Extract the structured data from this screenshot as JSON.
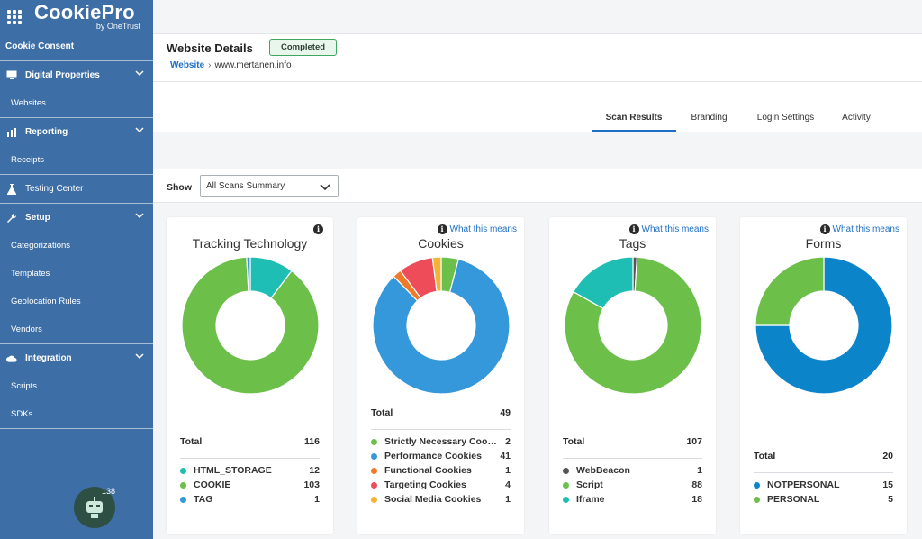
{
  "app": {
    "logo": "CookiePro",
    "logo_sub": "by OneTrust"
  },
  "sidebar": {
    "section_title": "Cookie Consent",
    "groups": [
      {
        "label": "Digital Properties",
        "icon": "monitor-icon",
        "items": [
          "Websites"
        ]
      },
      {
        "label": "Reporting",
        "icon": "bar-chart-icon",
        "items": [
          "Receipts"
        ]
      },
      {
        "label": "Testing Center",
        "icon": "flask-icon",
        "items": []
      },
      {
        "label": "Setup",
        "icon": "wrench-icon",
        "items": [
          "Categorizations",
          "Templates",
          "Geolocation Rules",
          "Vendors"
        ]
      },
      {
        "label": "Integration",
        "icon": "cloud-icon",
        "items": [
          "Scripts",
          "SDKs"
        ]
      }
    ],
    "bot_badge": "138"
  },
  "header": {
    "title": "Website Details",
    "status": "Completed",
    "breadcrumb_link": "Website",
    "breadcrumb_current": "www.mertanen.info"
  },
  "tabs": [
    "Scan Results",
    "Branding",
    "Login Settings",
    "Activity"
  ],
  "active_tab": "Scan Results",
  "filter": {
    "label": "Show",
    "value": "All Scans Summary"
  },
  "colors": {
    "accent": "#1f6fc5",
    "sidebar": "#3d6ea5",
    "green": "#6cc04a",
    "teal": "#1ebeb4",
    "blue": "#3498db",
    "orange": "#f39c12",
    "red": "#e74c3c",
    "grey": "#555555"
  },
  "cards": [
    {
      "title": "Tracking Technology",
      "info": "",
      "total_label": "Total",
      "total": "116",
      "items": [
        {
          "label": "HTML_STORAGE",
          "value": "12",
          "color": "#1ebeb4"
        },
        {
          "label": "COOKIE",
          "value": "103",
          "color": "#6cc04a"
        },
        {
          "label": "TAG",
          "value": "1",
          "color": "#3498db"
        }
      ]
    },
    {
      "title": "Cookies",
      "info": "What this means",
      "total_label": "Total",
      "total": "49",
      "items": [
        {
          "label": "Strictly Necessary Cook...",
          "value": "2",
          "color": "#6cc04a"
        },
        {
          "label": "Performance Cookies",
          "value": "41",
          "color": "#3498db"
        },
        {
          "label": "Functional Cookies",
          "value": "1",
          "color": "#f07a2a"
        },
        {
          "label": "Targeting Cookies",
          "value": "4",
          "color": "#ef4c5a"
        },
        {
          "label": "Social Media Cookies",
          "value": "1",
          "color": "#f1b434"
        }
      ]
    },
    {
      "title": "Tags",
      "info": "What this means",
      "total_label": "Total",
      "total": "107",
      "items": [
        {
          "label": "WebBeacon",
          "value": "1",
          "color": "#555555"
        },
        {
          "label": "Script",
          "value": "88",
          "color": "#6cc04a"
        },
        {
          "label": "Iframe",
          "value": "18",
          "color": "#1ebeb4"
        }
      ]
    },
    {
      "title": "Forms",
      "info": "What this means",
      "total_label": "Total",
      "total": "20",
      "items": [
        {
          "label": "NOTPERSONAL",
          "value": "15",
          "color": "#0c84c9"
        },
        {
          "label": "PERSONAL",
          "value": "5",
          "color": "#6cc04a"
        }
      ]
    }
  ]
}
